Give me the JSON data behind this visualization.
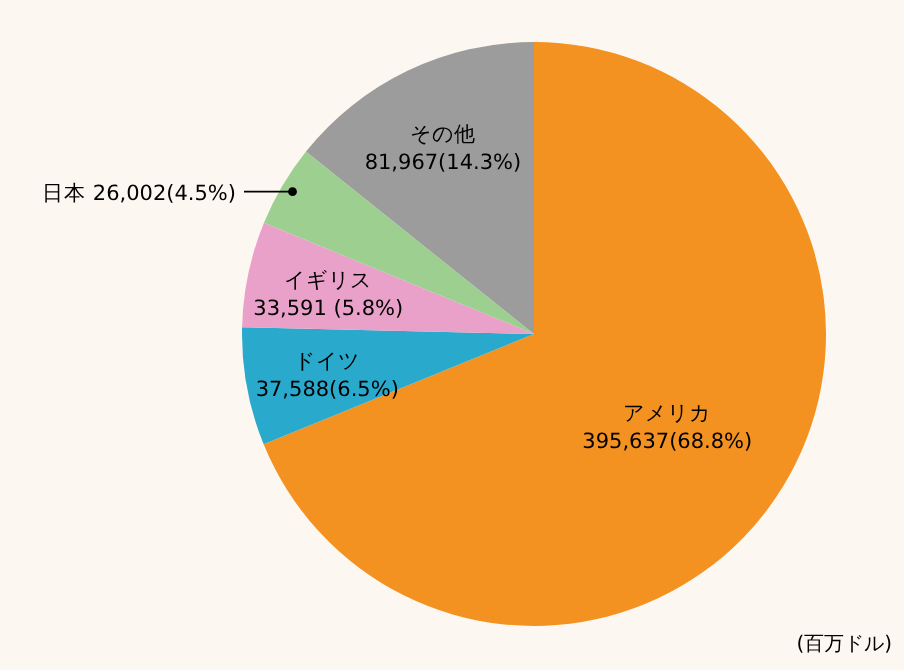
{
  "chart_data": {
    "type": "pie",
    "categories": [
      "アメリカ",
      "ドイツ",
      "イギリス",
      "日本",
      "その他"
    ],
    "values": [
      395637,
      37588,
      33591,
      26002,
      81967
    ],
    "value_labels": [
      "395,637(68.8%)",
      "37,588(6.5%)",
      "33,591 (5.8%)",
      "26,002(4.5%)",
      "81,967(14.3%)"
    ],
    "colors": [
      "#f39121",
      "#29a9cc",
      "#e9a1c9",
      "#9dcf90",
      "#9c9c9c"
    ],
    "annotations": [
      "(百万ドル)"
    ]
  }
}
